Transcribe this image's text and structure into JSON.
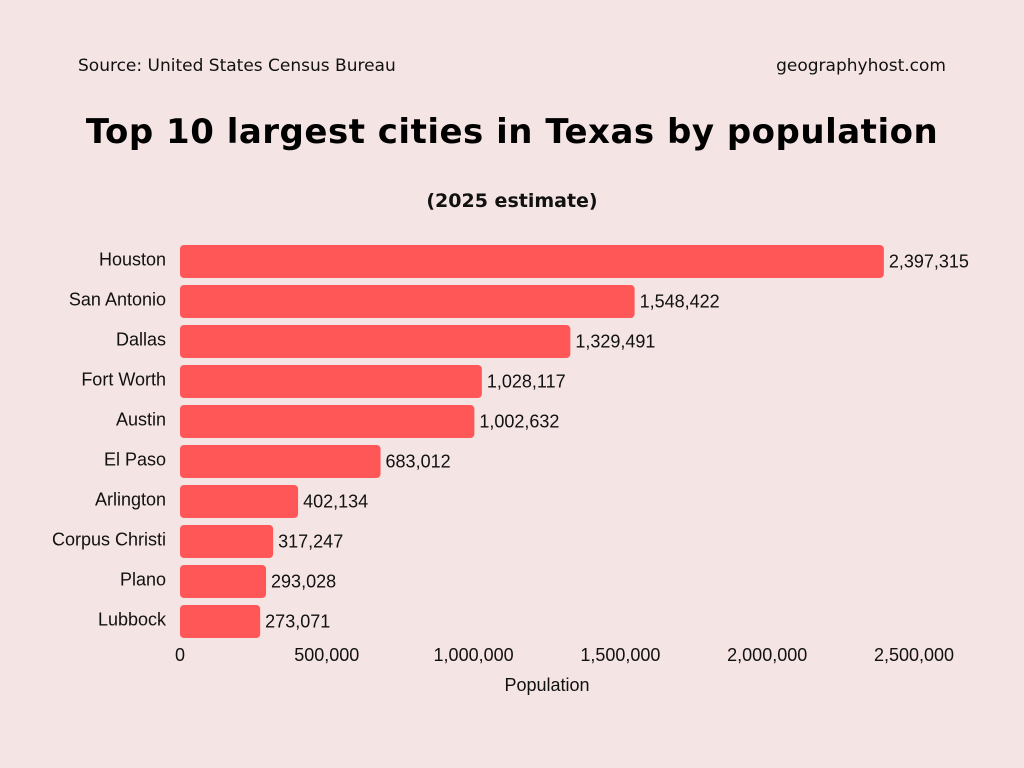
{
  "header": {
    "source": "Source: United States Census Bureau",
    "site": "geographyhost.com",
    "title": "Top 10 largest cities in Texas by population",
    "subtitle": "(2025 estimate)"
  },
  "colors": {
    "background": "#f4e4e3",
    "bar": "#ff5757"
  },
  "chart_data": {
    "type": "bar",
    "orientation": "horizontal",
    "categories": [
      "Houston",
      "San Antonio",
      "Dallas",
      "Fort Worth",
      "Austin",
      "El Paso",
      "Arlington",
      "Corpus Christi",
      "Plano",
      "Lubbock"
    ],
    "values": [
      2397315,
      1548422,
      1329491,
      1028117,
      1002632,
      683012,
      402134,
      317247,
      293028,
      273071
    ],
    "value_labels": [
      "2,397,315",
      "1,548,422",
      "1,329,491",
      "1,028,117",
      "1,002,632",
      "683,012",
      "402,134",
      "317,247",
      "293,028",
      "273,071"
    ],
    "xlabel": "Population",
    "ylabel": "",
    "xticks": [
      0,
      500000,
      1000000,
      1500000,
      2000000,
      2500000
    ],
    "xtick_labels": [
      "0",
      "500,000",
      "1,000,000",
      "1,500,000",
      "2,000,000",
      "2,500,000"
    ],
    "xlim": [
      0,
      2500000
    ],
    "grid": false,
    "legend": "none"
  }
}
